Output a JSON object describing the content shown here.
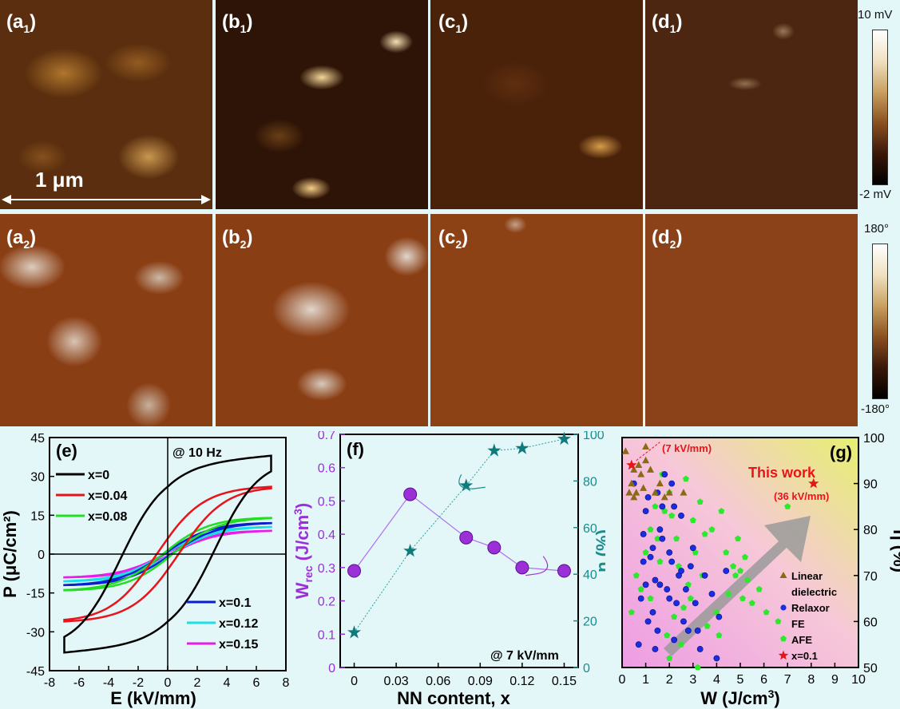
{
  "panels": {
    "a1": {
      "label_main": "(a",
      "label_sub": "1",
      "label_close": ")"
    },
    "b1": {
      "label_main": "(b",
      "label_sub": "1",
      "label_close": ")"
    },
    "c1": {
      "label_main": "(c",
      "label_sub": "1",
      "label_close": ")"
    },
    "d1": {
      "label_main": "(d",
      "label_sub": "1",
      "label_close": ")"
    },
    "a2": {
      "label_main": "(a",
      "label_sub": "2",
      "label_close": ")"
    },
    "b2": {
      "label_main": "(b",
      "label_sub": "2",
      "label_close": ")"
    },
    "c2": {
      "label_main": "(c",
      "label_sub": "2",
      "label_close": ")"
    },
    "d2": {
      "label_main": "(d",
      "label_sub": "2",
      "label_close": ")"
    }
  },
  "scale_bar": "1 μm",
  "colorbar_amp": {
    "top": "10 mV",
    "bottom": "-2 mV"
  },
  "colorbar_phase": {
    "top": "180°",
    "bottom": "-180°"
  },
  "colors": {
    "bg": "#e3f6f8",
    "purple": "#9b30d8",
    "teal": "#1a8c8c",
    "panel_g_bg": "#f2a6e6"
  },
  "chart_data": [
    {
      "panel": "(e)",
      "type": "line",
      "annotation": "@ 10 Hz",
      "xlabel": "E (kV/mm)",
      "ylabel": "P (μC/cm²)",
      "xlim": [
        -8,
        8
      ],
      "ylim": [
        -45,
        45
      ],
      "xticks": [
        -8,
        -6,
        -4,
        -2,
        0,
        2,
        4,
        6,
        8
      ],
      "yticks": [
        -45,
        -30,
        -15,
        0,
        15,
        30,
        45
      ],
      "series": [
        {
          "name": "x=0",
          "color": "#000000",
          "Pmax": 38,
          "Pr": 26,
          "Ec": 3.2
        },
        {
          "name": "x=0.04",
          "color": "#e8141c",
          "Pmax": 26,
          "Pr": 6,
          "Ec": 0.8
        },
        {
          "name": "x=0.08",
          "color": "#22dd22",
          "Pmax": 14,
          "Pr": 1.5,
          "Ec": 0.3
        },
        {
          "name": "x=0.1",
          "color": "#0a1fd0",
          "Pmax": 12,
          "Pr": 1,
          "Ec": 0.2
        },
        {
          "name": "x=0.12",
          "color": "#18e0e8",
          "Pmax": 10.5,
          "Pr": 0.8,
          "Ec": 0.2
        },
        {
          "name": "x=0.15",
          "color": "#e81ee8",
          "Pmax": 9,
          "Pr": 0.6,
          "Ec": 0.15
        }
      ],
      "Emax": 7
    },
    {
      "panel": "(f)",
      "type": "line",
      "annotation": "@ 7 kV/mm",
      "xlabel": "NN content, x",
      "ylabel_left": "W",
      "ylabel_left_sub": "rec",
      "ylabel_left_unit": " (J/cm",
      "ylabel_left_sup": "3",
      "ylabel_left_close": ")",
      "ylabel_right": "η (%)",
      "xlim": [
        -0.01,
        0.16
      ],
      "xticks": [
        0,
        0.03,
        0.06,
        0.09,
        0.12,
        0.15
      ],
      "xtick_labels": [
        "0",
        "0.03",
        "0.06",
        "0.09",
        "0.12",
        "0.15"
      ],
      "ylim_left": [
        0,
        0.7
      ],
      "yticks_left": [
        0,
        0.1,
        0.2,
        0.3,
        0.4,
        0.5,
        0.6,
        0.7
      ],
      "ylim_right": [
        0,
        100
      ],
      "yticks_right": [
        0,
        20,
        40,
        60,
        80,
        100
      ],
      "x": [
        0,
        0.04,
        0.08,
        0.1,
        0.12,
        0.15
      ],
      "Wrec": [
        0.29,
        0.52,
        0.39,
        0.36,
        0.3,
        0.29
      ],
      "eta": [
        15,
        50,
        78,
        93,
        94,
        98
      ]
    },
    {
      "panel": "(g)",
      "type": "scatter",
      "xlabel": "W (J/cm",
      "xlabel_sup": "3",
      "xlabel_close": ")",
      "ylabel": "η (%)",
      "xlim": [
        0,
        10
      ],
      "ylim": [
        50,
        100
      ],
      "xticks": [
        0,
        1,
        2,
        3,
        4,
        5,
        6,
        7,
        8,
        9,
        10
      ],
      "yticks": [
        50,
        60,
        70,
        80,
        90,
        100
      ],
      "annotations": {
        "this_work": "This work",
        "low_field": "(7 kV/mm)",
        "high_field": "(36 kV/mm)"
      },
      "legend": [
        "Linear dielectric",
        "Relaxor FE",
        "AFE",
        "x=0.1"
      ],
      "legend_lines": [
        "Linear",
        "dielectric",
        "Relaxor",
        "FE",
        "AFE",
        "x=0.1"
      ],
      "linear": [
        [
          0.15,
          97
        ],
        [
          0.4,
          90
        ],
        [
          0.6,
          88
        ],
        [
          0.8,
          92
        ],
        [
          1.0,
          95
        ],
        [
          1.2,
          93
        ],
        [
          0.3,
          88
        ],
        [
          0.5,
          87
        ],
        [
          0.9,
          89
        ],
        [
          1.4,
          88
        ],
        [
          1.6,
          90
        ],
        [
          1.8,
          87
        ],
        [
          2.6,
          88
        ],
        [
          1.0,
          98
        ],
        [
          0.7,
          94
        ],
        [
          2.0,
          88
        ],
        [
          0.5,
          93
        ]
      ],
      "relaxor": [
        [
          0.5,
          90
        ],
        [
          0.7,
          55
        ],
        [
          0.8,
          65
        ],
        [
          0.9,
          79
        ],
        [
          1.0,
          84
        ],
        [
          1.1,
          87
        ],
        [
          1.2,
          74
        ],
        [
          1.3,
          62
        ],
        [
          1.4,
          69
        ],
        [
          1.5,
          58
        ],
        [
          1.6,
          80
        ],
        [
          1.7,
          85
        ],
        [
          1.8,
          92
        ],
        [
          1.9,
          67
        ],
        [
          2.0,
          75
        ],
        [
          2.1,
          90
        ],
        [
          2.2,
          56
        ],
        [
          2.3,
          64
        ],
        [
          2.4,
          70
        ],
        [
          2.5,
          83
        ],
        [
          2.6,
          60
        ],
        [
          2.7,
          67
        ],
        [
          2.8,
          58
        ],
        [
          3.0,
          76
        ],
        [
          3.1,
          64
        ],
        [
          3.3,
          54
        ],
        [
          3.5,
          70
        ],
        [
          3.8,
          66
        ],
        [
          4.0,
          52
        ],
        [
          4.1,
          61
        ],
        [
          4.4,
          71
        ],
        [
          1.1,
          60
        ],
        [
          1.3,
          76
        ],
        [
          1.5,
          88
        ],
        [
          1.7,
          78
        ],
        [
          2.0,
          65
        ],
        [
          2.2,
          85
        ],
        [
          2.5,
          71
        ],
        [
          1.0,
          68
        ],
        [
          1.4,
          54
        ],
        [
          0.9,
          73
        ],
        [
          1.6,
          68
        ],
        [
          2.1,
          73
        ],
        [
          2.9,
          72
        ],
        [
          3.2,
          58
        ]
      ],
      "afe": [
        [
          0.6,
          70
        ],
        [
          0.8,
          67
        ],
        [
          1.0,
          75
        ],
        [
          1.2,
          80
        ],
        [
          1.4,
          85
        ],
        [
          1.5,
          78
        ],
        [
          1.7,
          92
        ],
        [
          1.9,
          57
        ],
        [
          2.0,
          88
        ],
        [
          2.1,
          83
        ],
        [
          2.3,
          78
        ],
        [
          2.4,
          72
        ],
        [
          2.5,
          55
        ],
        [
          2.6,
          63
        ],
        [
          2.7,
          91
        ],
        [
          2.9,
          65
        ],
        [
          3.0,
          82
        ],
        [
          3.1,
          75
        ],
        [
          3.3,
          86
        ],
        [
          3.4,
          70
        ],
        [
          3.6,
          59
        ],
        [
          3.8,
          80
        ],
        [
          4.0,
          62
        ],
        [
          4.2,
          84
        ],
        [
          4.4,
          75
        ],
        [
          4.5,
          66
        ],
        [
          4.7,
          72
        ],
        [
          4.9,
          78
        ],
        [
          5.0,
          71
        ],
        [
          5.1,
          65
        ],
        [
          5.3,
          69
        ],
        [
          5.5,
          64
        ],
        [
          5.8,
          67
        ],
        [
          6.1,
          62
        ],
        [
          6.6,
          60
        ],
        [
          7.0,
          85
        ],
        [
          1.2,
          65
        ],
        [
          1.6,
          73
        ],
        [
          2.2,
          61
        ],
        [
          2.8,
          68
        ],
        [
          3.5,
          79
        ],
        [
          4.1,
          57
        ],
        [
          4.8,
          70
        ],
        [
          3.2,
          50
        ],
        [
          2.0,
          52
        ],
        [
          0.4,
          62
        ],
        [
          1.8,
          84
        ],
        [
          5.2,
          74
        ]
      ],
      "this_work": [
        [
          0.4,
          94
        ],
        [
          8.1,
          90
        ]
      ]
    }
  ]
}
